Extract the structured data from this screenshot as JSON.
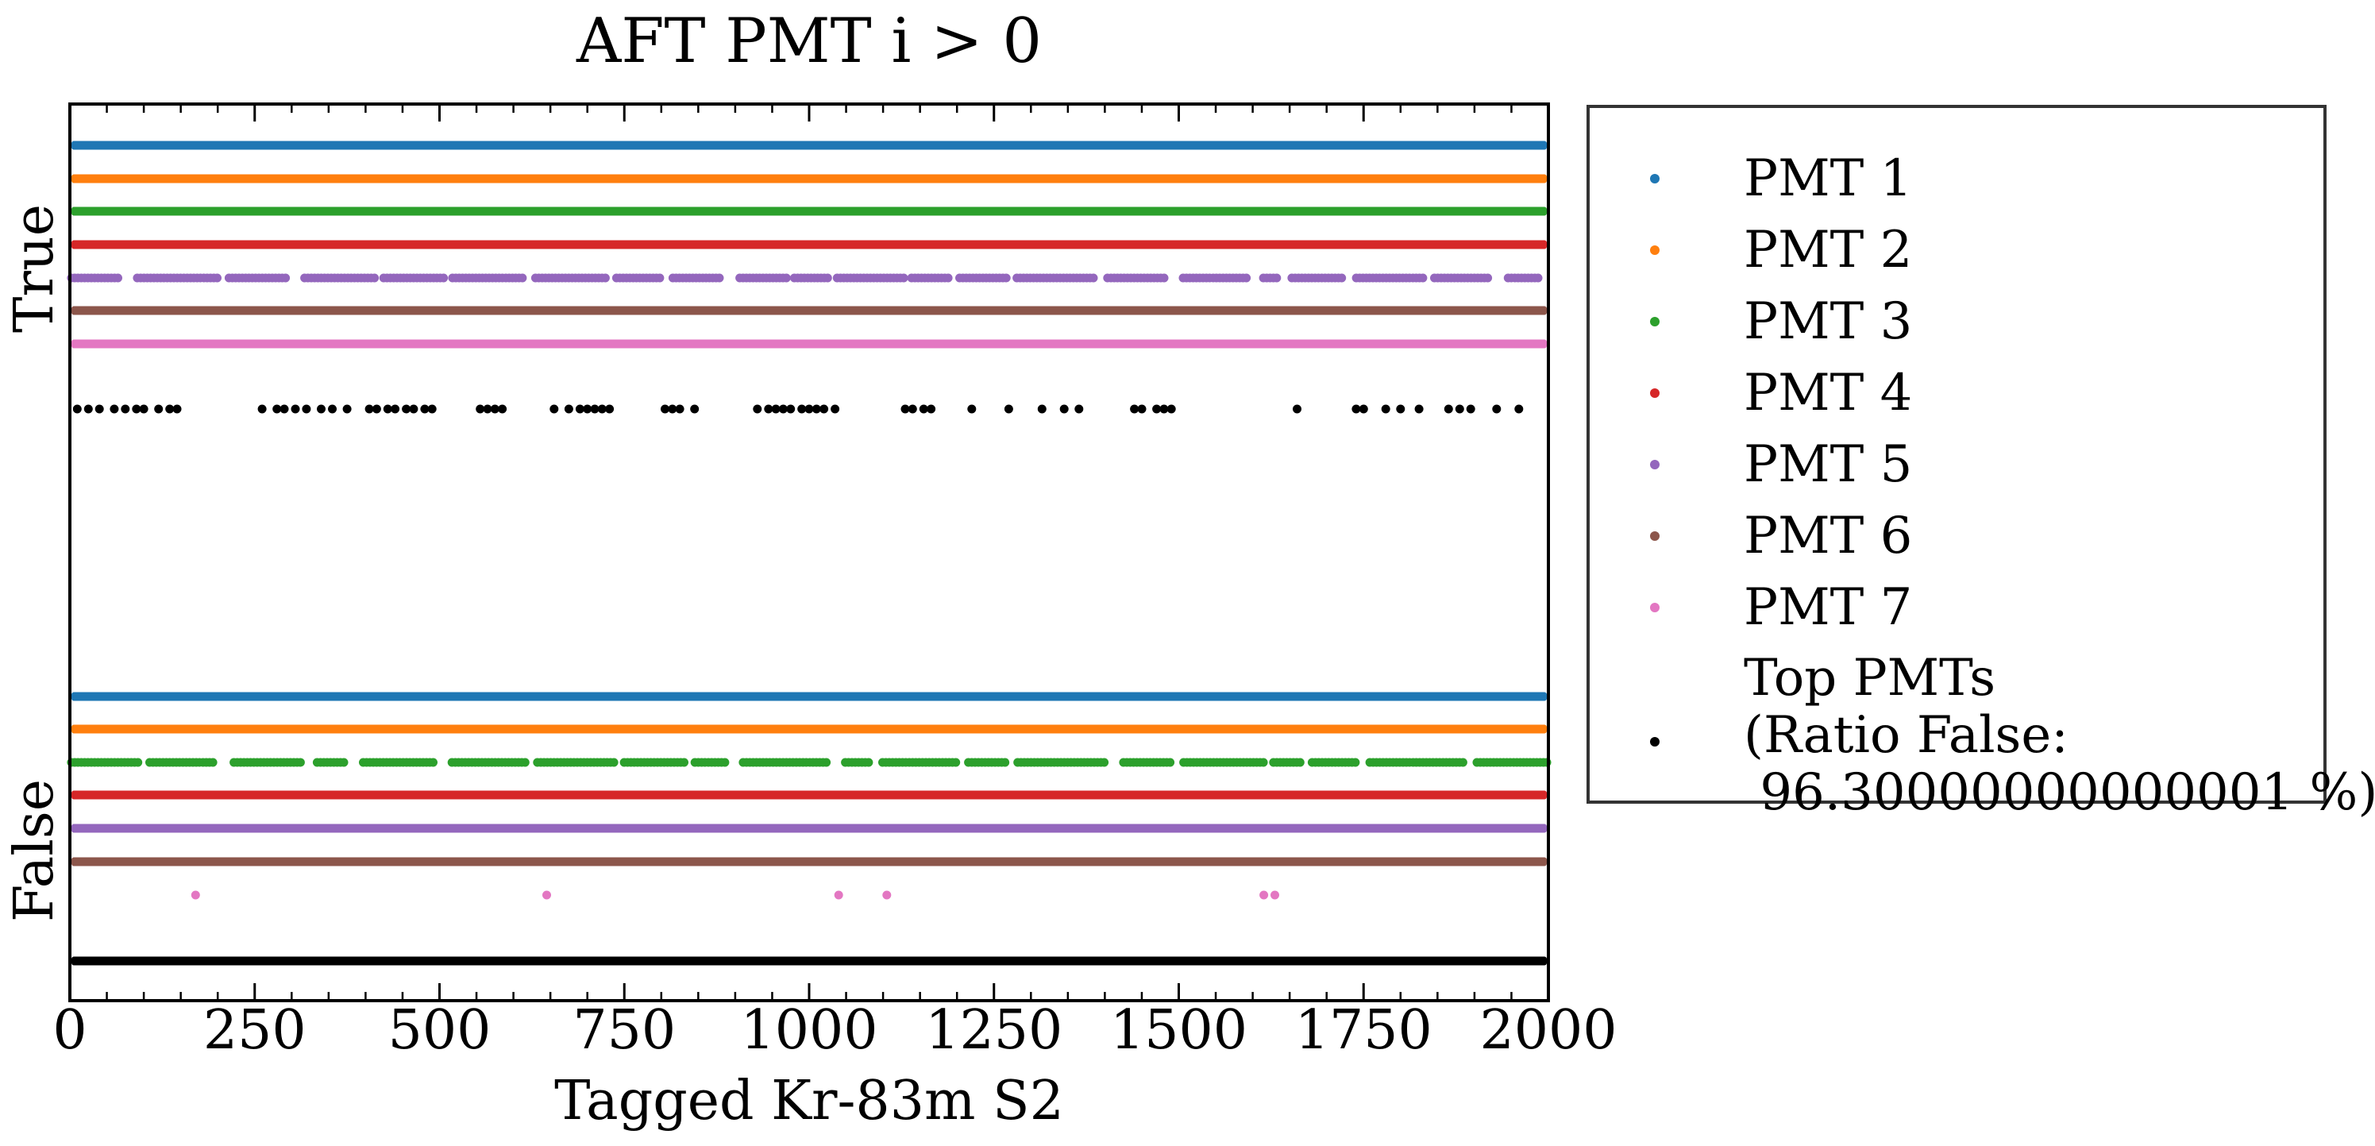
{
  "chart_data": {
    "type": "scatter",
    "title": "AFT PMT i > 0",
    "xlabel": "Tagged Kr-83m S2",
    "ylabel": "",
    "xlim": [
      0,
      2000
    ],
    "xticks": [
      "0",
      "250",
      "500",
      "750",
      "1000",
      "1250",
      "1500",
      "1750",
      "2000"
    ],
    "yticks": [
      "True",
      "False"
    ],
    "legend_placement": "outside right",
    "series": [
      {
        "name": "PMT 1",
        "color": "#1f77b4",
        "true_pattern": "continuous",
        "false_pattern": "continuous"
      },
      {
        "name": "PMT 2",
        "color": "#ff7f0e",
        "true_pattern": "continuous",
        "false_pattern": "continuous"
      },
      {
        "name": "PMT 3",
        "color": "#2ca02c",
        "true_pattern": "continuous",
        "false_pattern": "sparse"
      },
      {
        "name": "PMT 4",
        "color": "#d62728",
        "true_pattern": "continuous",
        "false_pattern": "continuous"
      },
      {
        "name": "PMT 5",
        "color": "#9467bd",
        "true_pattern": "sparse",
        "false_pattern": "continuous"
      },
      {
        "name": "PMT 6",
        "color": "#8c564b",
        "true_pattern": "continuous",
        "false_pattern": "continuous"
      },
      {
        "name": "PMT 7",
        "color": "#e377c2",
        "true_pattern": "continuous",
        "false_points": [
          170,
          645,
          1040,
          1105,
          1615,
          1630
        ]
      },
      {
        "name": "Top PMTs\n(Ratio False:\n 96.30000000000001 %)",
        "color": "#000000",
        "true_points": [
          10,
          25,
          40,
          60,
          75,
          90,
          100,
          120,
          135,
          145,
          260,
          280,
          290,
          305,
          320,
          340,
          355,
          375,
          405,
          415,
          430,
          440,
          455,
          465,
          480,
          490,
          555,
          565,
          575,
          585,
          655,
          675,
          690,
          700,
          710,
          720,
          730,
          805,
          815,
          825,
          845,
          930,
          945,
          955,
          965,
          975,
          990,
          1000,
          1010,
          1020,
          1035,
          1130,
          1140,
          1155,
          1165,
          1220,
          1270,
          1315,
          1345,
          1365,
          1440,
          1450,
          1470,
          1480,
          1490,
          1660,
          1740,
          1750,
          1780,
          1800,
          1825,
          1865,
          1880,
          1895,
          1930,
          1960
        ],
        "false_pattern": "continuous"
      }
    ]
  }
}
